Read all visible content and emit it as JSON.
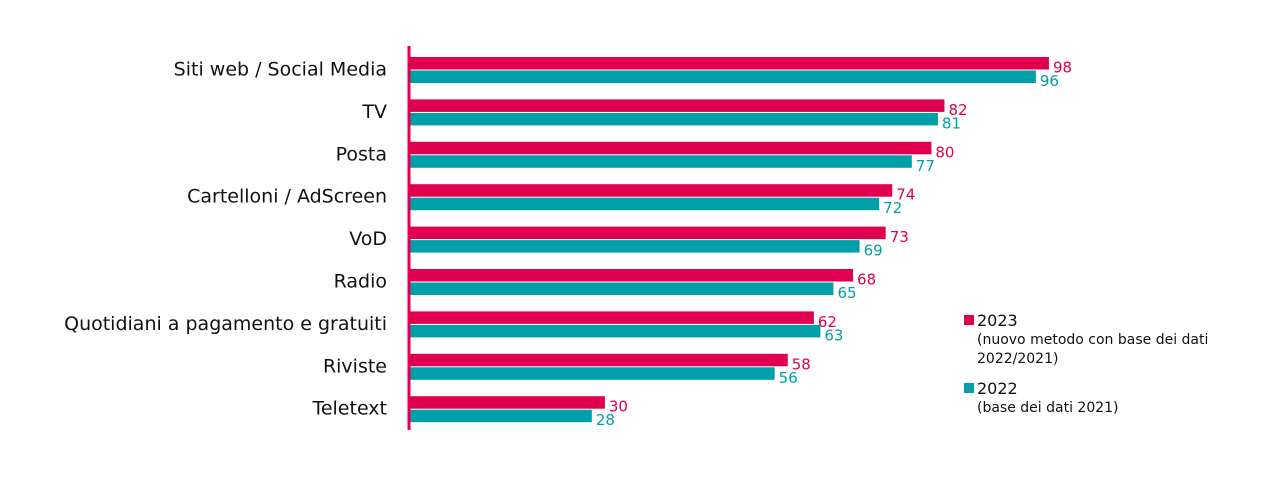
{
  "chart_data": {
    "type": "bar",
    "orientation": "horizontal",
    "categories": [
      "Siti web / Social Media",
      "TV",
      "Posta",
      "Cartelloni / AdScreen",
      "VoD",
      "Radio",
      "Quotidiani a pagamento e gratuiti",
      "Riviste",
      "Teletext"
    ],
    "series": [
      {
        "name": "2023",
        "values": [
          98,
          82,
          80,
          74,
          73,
          68,
          62,
          58,
          30
        ],
        "color": "#e0004f"
      },
      {
        "name": "2022",
        "values": [
          96,
          81,
          77,
          72,
          69,
          65,
          63,
          56,
          28
        ],
        "color": "#00a0aa"
      }
    ],
    "legend": {
      "placement": "right",
      "entries": [
        {
          "label": "2023",
          "note_lines": [
            "(nuovo metodo con base dei dati",
            "2022/2021)"
          ]
        },
        {
          "label": "2022",
          "note_lines": [
            "(base dei dati 2021)"
          ]
        }
      ]
    },
    "axis_color": "#e0004f",
    "xlim": [
      0,
      100
    ],
    "grid": false,
    "title": "",
    "xlabel": "",
    "ylabel": ""
  }
}
